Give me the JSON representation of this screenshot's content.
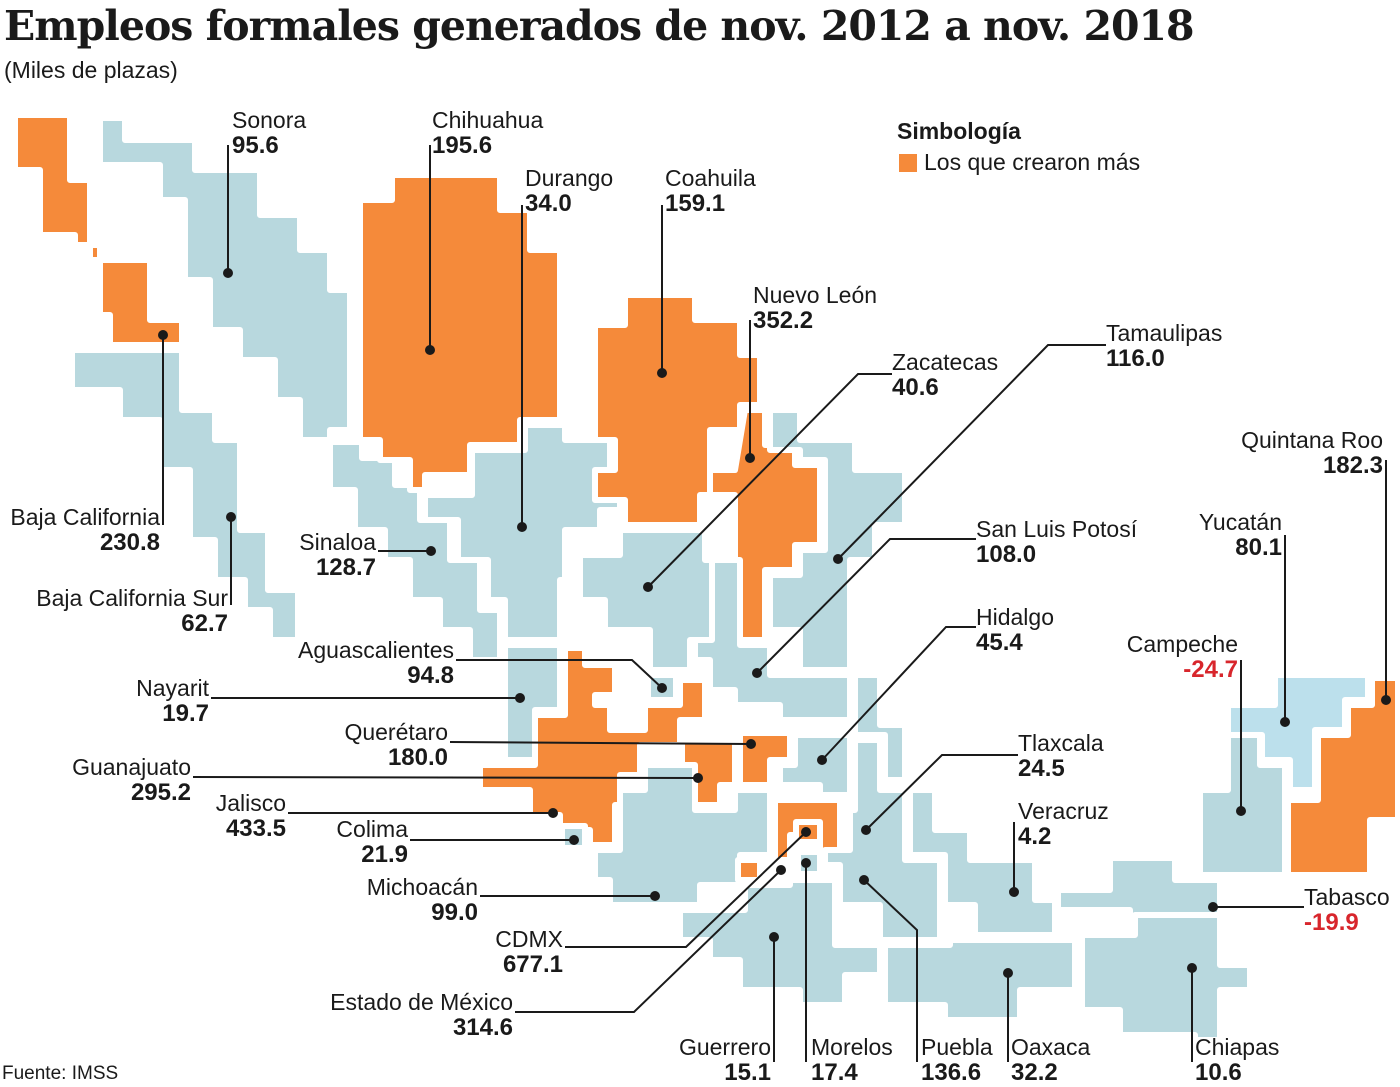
{
  "title": "Empleos formales generados de nov. 2012 a nov. 2018",
  "subtitle": "(Miles de plazas)",
  "source": "Fuente: IMSS",
  "legend": {
    "title": "Simbología",
    "label": "Los que crearon más",
    "highlight_color": "#f58a3a"
  },
  "colors": {
    "highlight": "#f58a3a",
    "base": "#b8d8de",
    "negative_text": "#d8262c"
  },
  "states": {
    "sonora": {
      "name": "Sonora",
      "value": "95.6"
    },
    "chihuahua": {
      "name": "Chihuahua",
      "value": "195.6"
    },
    "durango": {
      "name": "Durango",
      "value": "34.0"
    },
    "coahuila": {
      "name": "Coahuila",
      "value": "159.1"
    },
    "nuevo_leon": {
      "name": "Nuevo León",
      "value": "352.2"
    },
    "tamaulipas": {
      "name": "Tamaulipas",
      "value": "116.0"
    },
    "zacatecas": {
      "name": "Zacatecas",
      "value": "40.6"
    },
    "quintana_roo": {
      "name": "Quintana Roo",
      "value": "182.3"
    },
    "baja_california": {
      "name": "Baja California",
      "value": "230.8"
    },
    "sinaloa": {
      "name": "Sinaloa",
      "value": "128.7"
    },
    "san_luis_potosi": {
      "name": "San Luis Potosí",
      "value": "108.0"
    },
    "yucatan": {
      "name": "Yucatán",
      "value": "80.1"
    },
    "baja_california_sur": {
      "name": "Baja California Sur",
      "value": "62.7"
    },
    "hidalgo": {
      "name": "Hidalgo",
      "value": "45.4"
    },
    "campeche": {
      "name": "Campeche",
      "value": "-24.7"
    },
    "aguascalientes": {
      "name": "Aguascalientes",
      "value": "94.8"
    },
    "nayarit": {
      "name": "Nayarit",
      "value": "19.7"
    },
    "queretaro": {
      "name": "Querétaro",
      "value": "180.0"
    },
    "tlaxcala": {
      "name": "Tlaxcala",
      "value": "24.5"
    },
    "guanajuato": {
      "name": "Guanajuato",
      "value": "295.2"
    },
    "veracruz": {
      "name": "Veracruz",
      "value": "4.2"
    },
    "jalisco": {
      "name": "Jalisco",
      "value": "433.5"
    },
    "colima": {
      "name": "Colima",
      "value": "21.9"
    },
    "tabasco": {
      "name": "Tabasco",
      "value": "-19.9"
    },
    "michoacan": {
      "name": "Michoacán",
      "value": "99.0"
    },
    "cdmx": {
      "name": "CDMX",
      "value": "677.1"
    },
    "estado_de_mexico": {
      "name": "Estado de México",
      "value": "314.6"
    },
    "guerrero": {
      "name": "Guerrero",
      "value": "15.1"
    },
    "morelos": {
      "name": "Morelos",
      "value": "17.4"
    },
    "puebla": {
      "name": "Puebla",
      "value": "136.6"
    },
    "oaxaca": {
      "name": "Oaxaca",
      "value": "32.2"
    },
    "chiapas": {
      "name": "Chiapas",
      "value": "10.6"
    }
  }
}
